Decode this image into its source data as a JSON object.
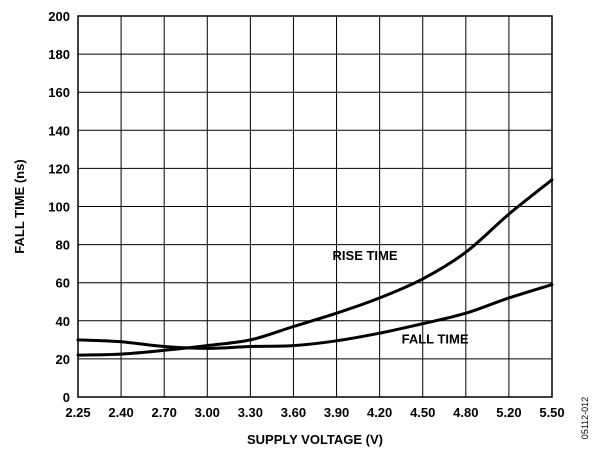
{
  "chart_data": {
    "type": "line",
    "xlabel": "SUPPLY VOLTAGE (V)",
    "ylabel": "FALL TIME (ns)",
    "xlim": [
      2.25,
      5.5
    ],
    "ylim": [
      0,
      200
    ],
    "x_ticks": [
      "2.25",
      "2.40",
      "2.70",
      "3.00",
      "3.30",
      "3.60",
      "3.90",
      "4.20",
      "4.50",
      "4.80",
      "5.20",
      "5.50"
    ],
    "y_ticks": [
      "0",
      "20",
      "40",
      "60",
      "80",
      "100",
      "120",
      "140",
      "160",
      "180",
      "200"
    ],
    "grid": true,
    "series": [
      {
        "name": "RISE TIME",
        "x": [
          2.25,
          2.4,
          2.7,
          3.0,
          3.3,
          3.6,
          3.9,
          4.2,
          4.5,
          4.8,
          5.2,
          5.5
        ],
        "y": [
          22,
          22.5,
          24.5,
          27,
          30,
          37,
          44,
          52,
          62,
          76,
          96,
          114
        ]
      },
      {
        "name": "FALL TIME",
        "x": [
          2.25,
          2.4,
          2.7,
          3.0,
          3.3,
          3.6,
          3.9,
          4.2,
          4.5,
          4.8,
          5.2,
          5.5
        ],
        "y": [
          30,
          29,
          26.5,
          25.5,
          26.5,
          27,
          29.5,
          33.5,
          38.5,
          44,
          52,
          59
        ]
      }
    ],
    "figure_id": "05112-012"
  }
}
